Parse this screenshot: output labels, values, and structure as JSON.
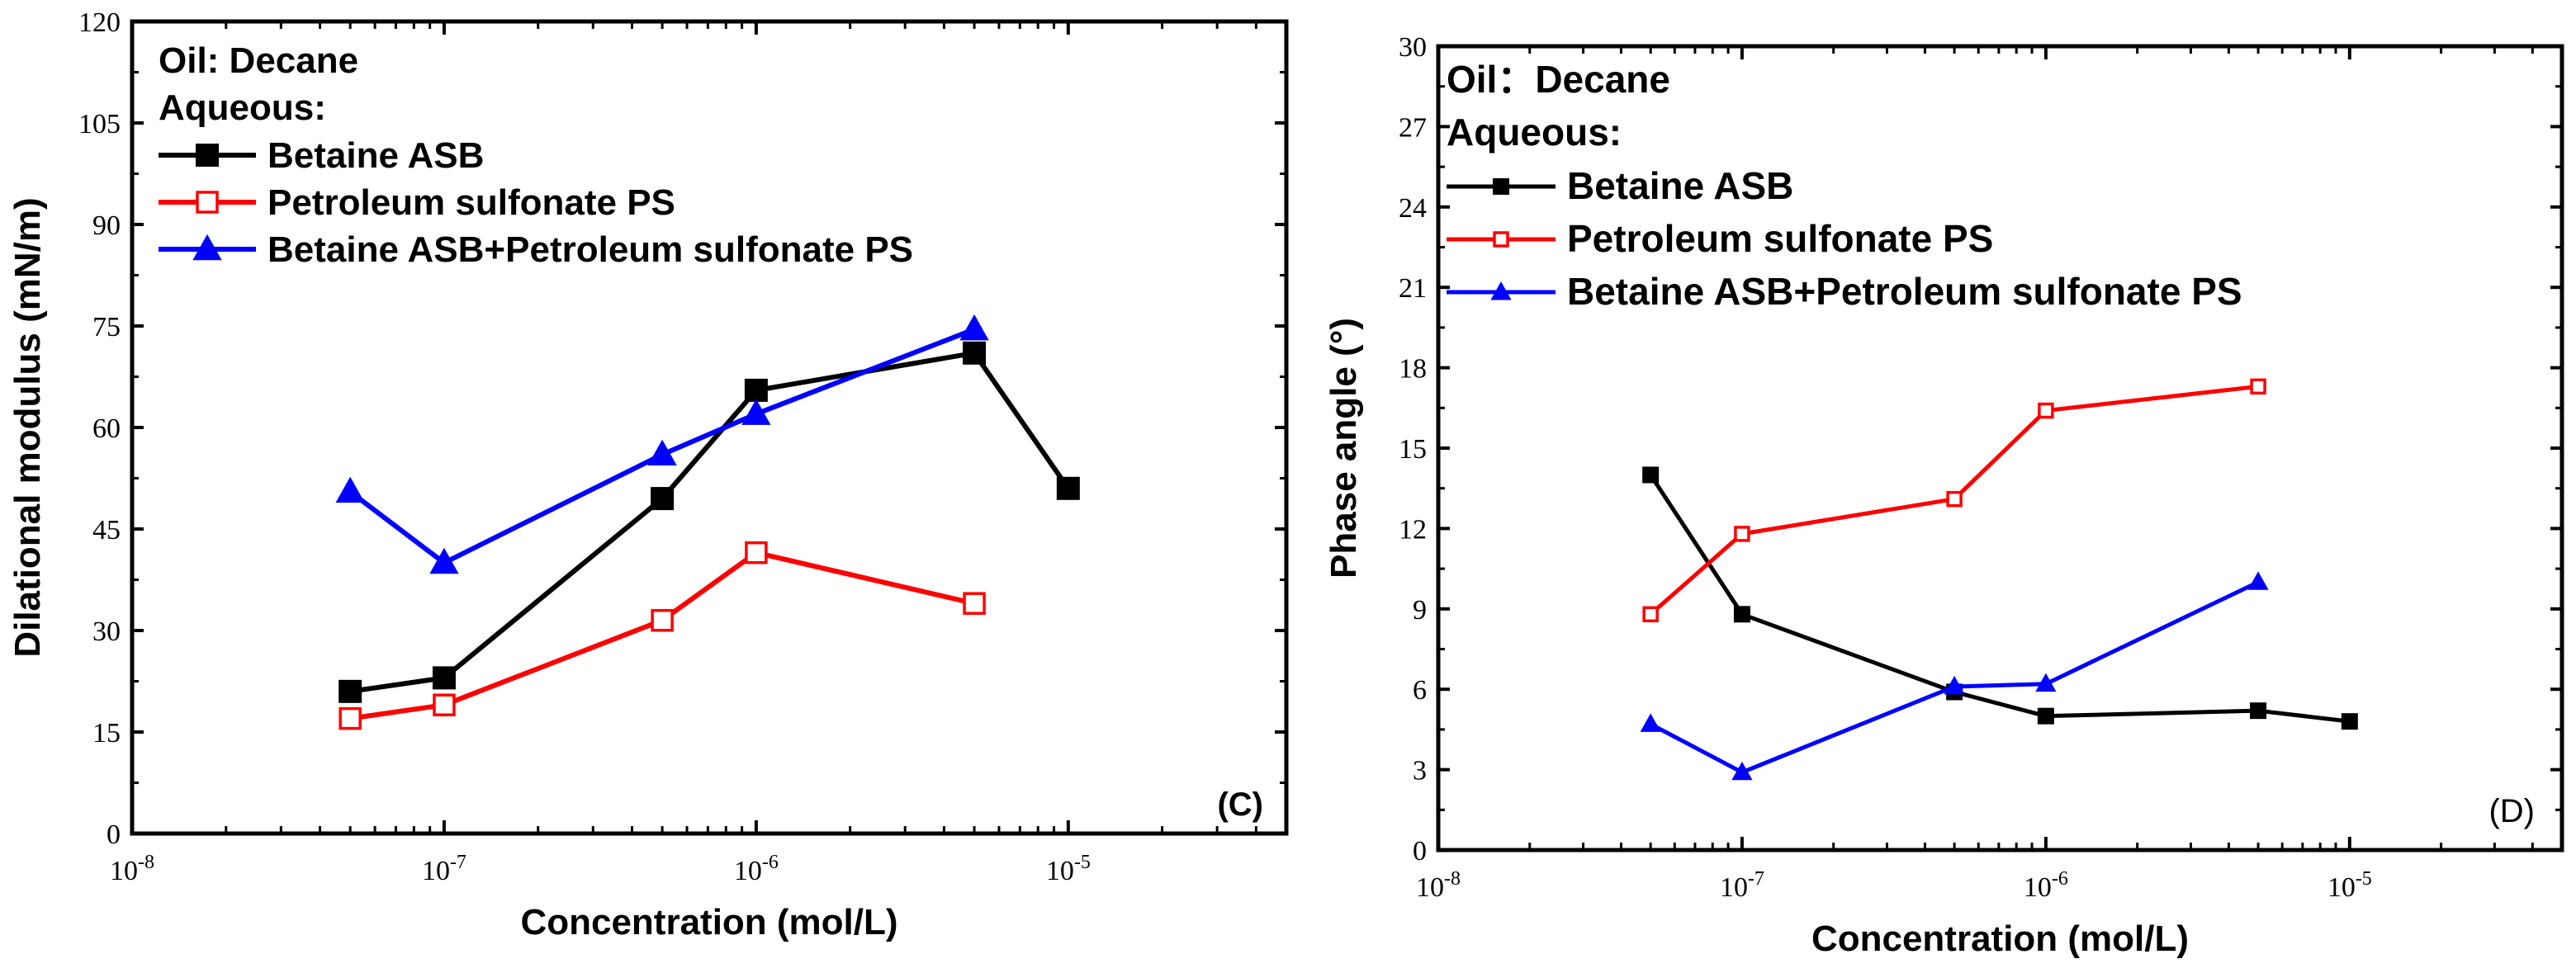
{
  "chart_data": [
    {
      "type": "line",
      "panel_label": "(C)",
      "xlabel": "Concentration (mol/L)",
      "ylabel": "Dilational modulus (mN/m)",
      "xscale": "log",
      "xlim": [
        1e-08,
        5e-05
      ],
      "ylim": [
        0,
        120
      ],
      "x_ticks": [
        {
          "value": 1e-08,
          "base": "10",
          "exp": "-8"
        },
        {
          "value": 1e-07,
          "base": "10",
          "exp": "-7"
        },
        {
          "value": 1e-06,
          "base": "10",
          "exp": "-6"
        },
        {
          "value": 1e-05,
          "base": "10",
          "exp": "-5"
        }
      ],
      "y_ticks": [
        0,
        15,
        30,
        45,
        60,
        75,
        90,
        105,
        120
      ],
      "legend": {
        "header_lines": [
          "Oil:  Decane",
          "Aqueous:"
        ],
        "placement": "top-left"
      },
      "series": [
        {
          "name": "Betaine ASB",
          "color": "#000000",
          "marker": "square-filled",
          "x": [
            5e-08,
            1e-07,
            5e-07,
            1e-06,
            5e-06,
            1e-05
          ],
          "y": [
            21,
            23,
            49.5,
            65.5,
            71,
            51
          ]
        },
        {
          "name": "Petroleum sulfonate PS",
          "color": "#ff0000",
          "marker": "square-open",
          "x": [
            5e-08,
            1e-07,
            5e-07,
            1e-06,
            5e-06
          ],
          "y": [
            17,
            19,
            31.5,
            41.5,
            34
          ]
        },
        {
          "name": "Betaine ASB+Petroleum sulfonate PS",
          "color": "#0000ff",
          "marker": "triangle-filled",
          "x": [
            5e-08,
            1e-07,
            5e-07,
            1e-06,
            5e-06
          ],
          "y": [
            50.5,
            40,
            56,
            62,
            74.5
          ]
        }
      ]
    },
    {
      "type": "line",
      "panel_label": "(D)",
      "xlabel": "Concentration (mol/L)",
      "ylabel": "Phase angle (°)",
      "xscale": "log",
      "xlim": [
        1e-08,
        5e-05
      ],
      "ylim": [
        0,
        30
      ],
      "x_ticks": [
        {
          "value": 1e-08,
          "base": "10",
          "exp": "-8"
        },
        {
          "value": 1e-07,
          "base": "10",
          "exp": "-7"
        },
        {
          "value": 1e-06,
          "base": "10",
          "exp": "-6"
        },
        {
          "value": 1e-05,
          "base": "10",
          "exp": "-5"
        }
      ],
      "y_ticks": [
        0,
        3,
        6,
        9,
        12,
        15,
        18,
        21,
        24,
        27,
        30
      ],
      "legend": {
        "header_lines": [
          "Oil：Decane",
          "Aqueous:"
        ],
        "placement": "top-left"
      },
      "series": [
        {
          "name": "Betaine ASB",
          "color": "#000000",
          "marker": "square-filled",
          "x": [
            5e-08,
            1e-07,
            5e-07,
            1e-06,
            5e-06,
            1e-05
          ],
          "y": [
            14.0,
            8.8,
            5.9,
            5.0,
            5.2,
            4.8
          ]
        },
        {
          "name": "Petroleum sulfonate PS",
          "color": "#ff0000",
          "marker": "square-open",
          "x": [
            5e-08,
            1e-07,
            5e-07,
            1e-06,
            5e-06
          ],
          "y": [
            8.8,
            11.8,
            13.1,
            16.4,
            17.3
          ]
        },
        {
          "name": "Betaine ASB+Petroleum sulfonate PS",
          "color": "#0000ff",
          "marker": "triangle-filled",
          "x": [
            5e-08,
            1e-07,
            5e-07,
            1e-06,
            5e-06
          ],
          "y": [
            4.7,
            2.9,
            6.1,
            6.2,
            10.0
          ]
        }
      ]
    }
  ]
}
